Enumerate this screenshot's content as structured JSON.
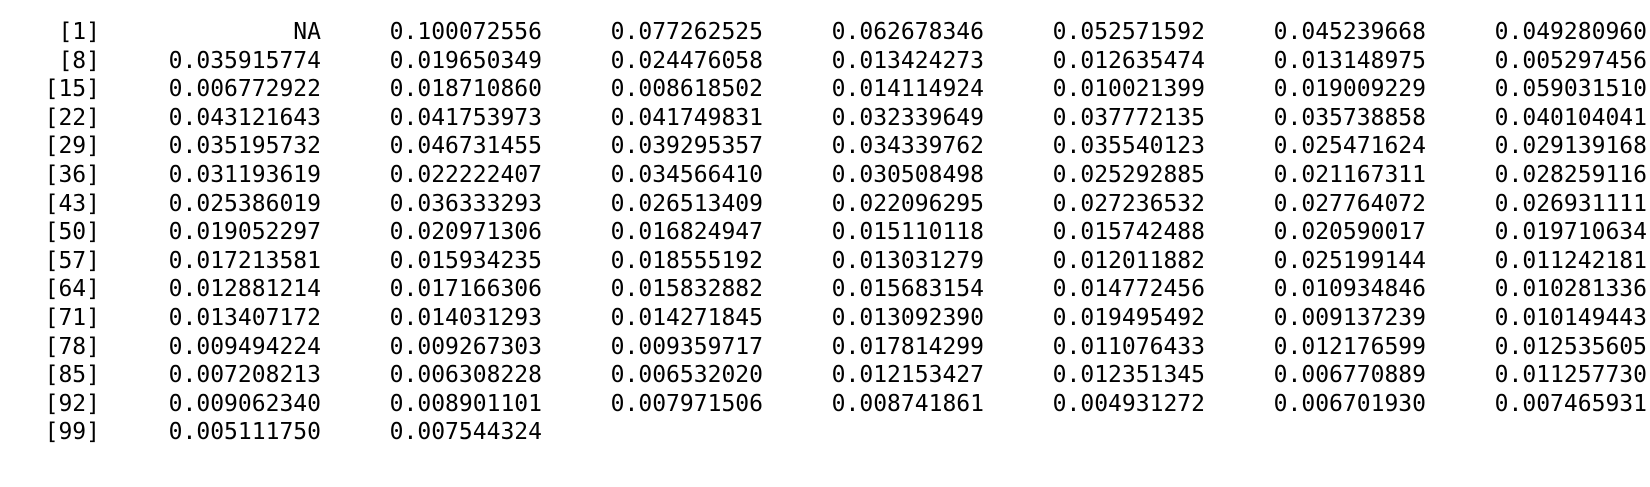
{
  "console": {
    "rows": [
      {
        "index": "[1]",
        "values": [
          "NA",
          "0.100072556",
          "0.077262525",
          "0.062678346",
          "0.052571592",
          "0.045239668",
          "0.049280960"
        ]
      },
      {
        "index": "[8]",
        "values": [
          "0.035915774",
          "0.019650349",
          "0.024476058",
          "0.013424273",
          "0.012635474",
          "0.013148975",
          "0.005297456"
        ]
      },
      {
        "index": "[15]",
        "values": [
          "0.006772922",
          "0.018710860",
          "0.008618502",
          "0.014114924",
          "0.010021399",
          "0.019009229",
          "0.059031510"
        ]
      },
      {
        "index": "[22]",
        "values": [
          "0.043121643",
          "0.041753973",
          "0.041749831",
          "0.032339649",
          "0.037772135",
          "0.035738858",
          "0.040104041"
        ]
      },
      {
        "index": "[29]",
        "values": [
          "0.035195732",
          "0.046731455",
          "0.039295357",
          "0.034339762",
          "0.035540123",
          "0.025471624",
          "0.029139168"
        ]
      },
      {
        "index": "[36]",
        "values": [
          "0.031193619",
          "0.022222407",
          "0.034566410",
          "0.030508498",
          "0.025292885",
          "0.021167311",
          "0.028259116"
        ]
      },
      {
        "index": "[43]",
        "values": [
          "0.025386019",
          "0.036333293",
          "0.026513409",
          "0.022096295",
          "0.027236532",
          "0.027764072",
          "0.026931111"
        ]
      },
      {
        "index": "[50]",
        "values": [
          "0.019052297",
          "0.020971306",
          "0.016824947",
          "0.015110118",
          "0.015742488",
          "0.020590017",
          "0.019710634"
        ]
      },
      {
        "index": "[57]",
        "values": [
          "0.017213581",
          "0.015934235",
          "0.018555192",
          "0.013031279",
          "0.012011882",
          "0.025199144",
          "0.011242181"
        ]
      },
      {
        "index": "[64]",
        "values": [
          "0.012881214",
          "0.017166306",
          "0.015832882",
          "0.015683154",
          "0.014772456",
          "0.010934846",
          "0.010281336"
        ]
      },
      {
        "index": "[71]",
        "values": [
          "0.013407172",
          "0.014031293",
          "0.014271845",
          "0.013092390",
          "0.019495492",
          "0.009137239",
          "0.010149443"
        ]
      },
      {
        "index": "[78]",
        "values": [
          "0.009494224",
          "0.009267303",
          "0.009359717",
          "0.017814299",
          "0.011076433",
          "0.012176599",
          "0.012535605"
        ]
      },
      {
        "index": "[85]",
        "values": [
          "0.007208213",
          "0.006308228",
          "0.006532020",
          "0.012153427",
          "0.012351345",
          "0.006770889",
          "0.011257730"
        ]
      },
      {
        "index": "[92]",
        "values": [
          "0.009062340",
          "0.008901101",
          "0.007971506",
          "0.008741861",
          "0.004931272",
          "0.006701930",
          "0.007465931"
        ]
      },
      {
        "index": "[99]",
        "values": [
          "0.005111750",
          "0.007544324"
        ]
      }
    ]
  }
}
